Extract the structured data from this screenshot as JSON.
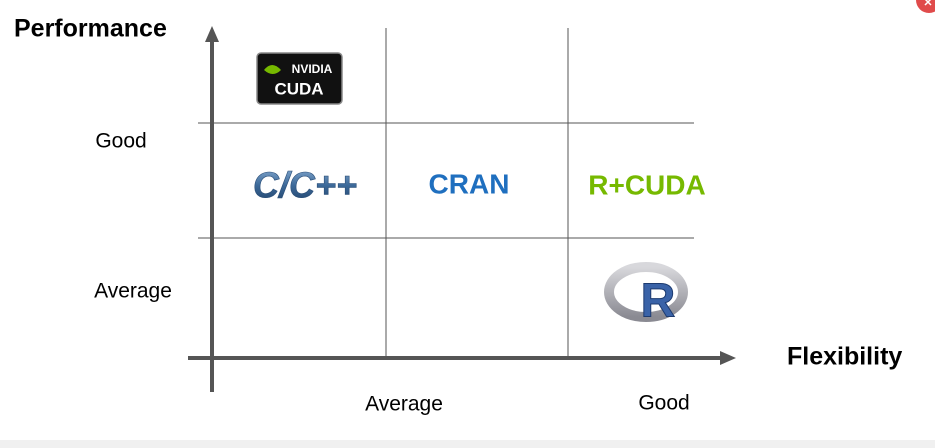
{
  "axes": {
    "y_title": "Performance",
    "x_title": "Flexibility",
    "y_labels": [
      "Good",
      "Average"
    ],
    "x_labels": [
      "Average",
      "Good"
    ]
  },
  "cells": {
    "c_cpp": "C/C++",
    "cran": "CRAN",
    "r_cuda": "R+CUDA"
  },
  "logos": {
    "nvidia": "NVIDIA",
    "cuda": "CUDA",
    "r": "R"
  }
}
